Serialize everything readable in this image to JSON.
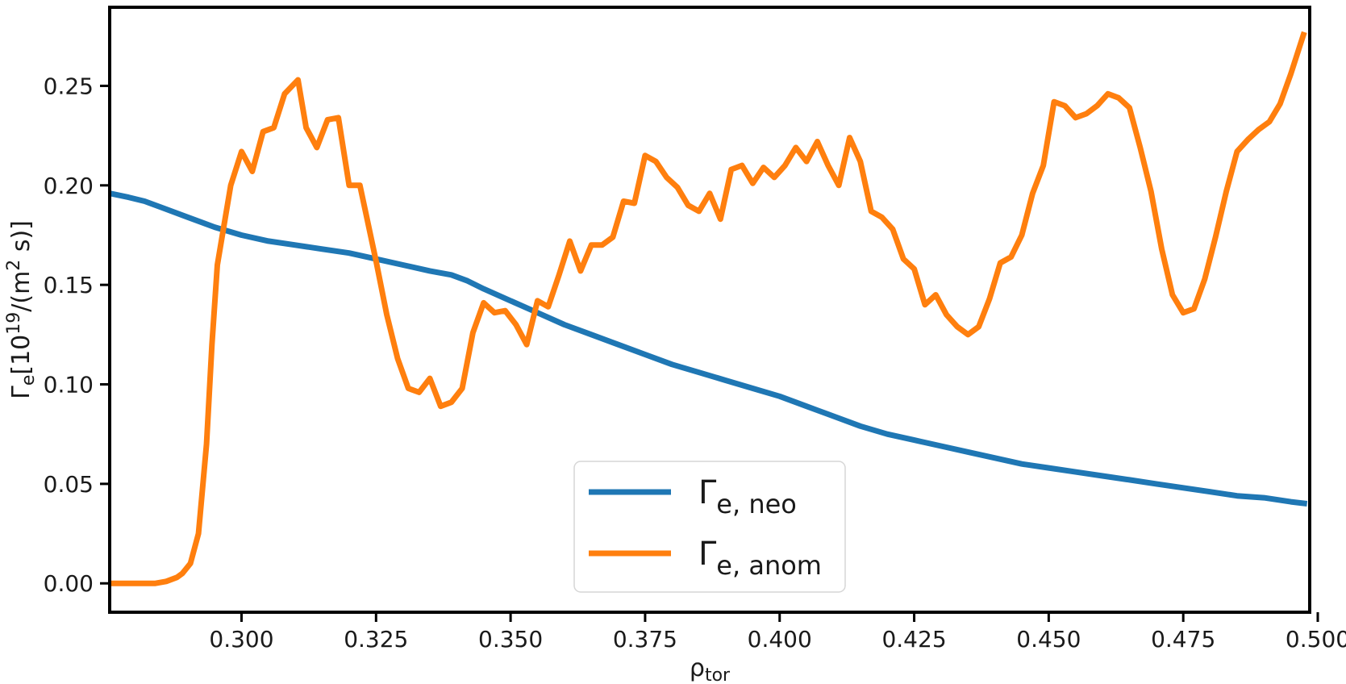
{
  "chart_data": {
    "type": "line",
    "xlabel": {
      "main": "ρ",
      "sub": "tor"
    },
    "ylabel": {
      "main": "Γ",
      "sub": "e",
      "rest": "[10",
      "sup": "19",
      "tail": "/(m",
      "sup2": "2",
      "end": " s)]"
    },
    "xlim": [
      0.2755,
      0.4985
    ],
    "ylim": [
      -0.0145,
      0.2895
    ],
    "xticks": [
      0.3,
      0.325,
      0.35,
      0.375,
      0.4,
      0.425,
      0.45,
      0.475,
      0.5
    ],
    "xtick_labels": [
      "0.300",
      "0.325",
      "0.350",
      "0.375",
      "0.400",
      "0.425",
      "0.450",
      "0.475",
      "0.500"
    ],
    "yticks": [
      0.0,
      0.05,
      0.1,
      0.15,
      0.2,
      0.25
    ],
    "ytick_labels": [
      "0.00",
      "0.05",
      "0.10",
      "0.15",
      "0.20",
      "0.25"
    ],
    "grid": false,
    "legend_position": "bottom-center",
    "series": [
      {
        "name": "Γe, neo",
        "legend": {
          "main": "Γ",
          "sub": "e, neo"
        },
        "color": "#1f77b4",
        "points": [
          [
            0.2755,
            0.196
          ],
          [
            0.279,
            0.194
          ],
          [
            0.282,
            0.192
          ],
          [
            0.285,
            0.189
          ],
          [
            0.29,
            0.184
          ],
          [
            0.295,
            0.179
          ],
          [
            0.3,
            0.175
          ],
          [
            0.305,
            0.172
          ],
          [
            0.31,
            0.17
          ],
          [
            0.315,
            0.168
          ],
          [
            0.32,
            0.166
          ],
          [
            0.325,
            0.163
          ],
          [
            0.33,
            0.16
          ],
          [
            0.335,
            0.157
          ],
          [
            0.339,
            0.155
          ],
          [
            0.342,
            0.152
          ],
          [
            0.345,
            0.148
          ],
          [
            0.35,
            0.142
          ],
          [
            0.355,
            0.136
          ],
          [
            0.36,
            0.13
          ],
          [
            0.365,
            0.125
          ],
          [
            0.37,
            0.12
          ],
          [
            0.375,
            0.115
          ],
          [
            0.38,
            0.11
          ],
          [
            0.385,
            0.106
          ],
          [
            0.39,
            0.102
          ],
          [
            0.395,
            0.098
          ],
          [
            0.4,
            0.094
          ],
          [
            0.405,
            0.089
          ],
          [
            0.41,
            0.084
          ],
          [
            0.415,
            0.079
          ],
          [
            0.42,
            0.075
          ],
          [
            0.425,
            0.072
          ],
          [
            0.43,
            0.069
          ],
          [
            0.435,
            0.066
          ],
          [
            0.44,
            0.063
          ],
          [
            0.445,
            0.06
          ],
          [
            0.45,
            0.058
          ],
          [
            0.455,
            0.056
          ],
          [
            0.46,
            0.054
          ],
          [
            0.465,
            0.052
          ],
          [
            0.47,
            0.05
          ],
          [
            0.475,
            0.048
          ],
          [
            0.48,
            0.046
          ],
          [
            0.485,
            0.044
          ],
          [
            0.49,
            0.043
          ],
          [
            0.495,
            0.041
          ],
          [
            0.498,
            0.04
          ]
        ]
      },
      {
        "name": "Γe, anom",
        "legend": {
          "main": "Γ",
          "sub": "e, anom"
        },
        "color": "#ff7f0e",
        "points": [
          [
            0.2755,
            0.0
          ],
          [
            0.278,
            0.0
          ],
          [
            0.28,
            0.0
          ],
          [
            0.282,
            0.0
          ],
          [
            0.284,
            0.0
          ],
          [
            0.286,
            0.001
          ],
          [
            0.288,
            0.003
          ],
          [
            0.289,
            0.005
          ],
          [
            0.2905,
            0.01
          ],
          [
            0.292,
            0.025
          ],
          [
            0.2935,
            0.07
          ],
          [
            0.2945,
            0.12
          ],
          [
            0.2955,
            0.16
          ],
          [
            0.298,
            0.2
          ],
          [
            0.3,
            0.217
          ],
          [
            0.302,
            0.207
          ],
          [
            0.304,
            0.227
          ],
          [
            0.306,
            0.229
          ],
          [
            0.308,
            0.246
          ],
          [
            0.3105,
            0.253
          ],
          [
            0.312,
            0.229
          ],
          [
            0.314,
            0.219
          ],
          [
            0.316,
            0.233
          ],
          [
            0.318,
            0.234
          ],
          [
            0.32,
            0.2
          ],
          [
            0.322,
            0.2
          ],
          [
            0.325,
            0.162
          ],
          [
            0.327,
            0.135
          ],
          [
            0.329,
            0.113
          ],
          [
            0.331,
            0.098
          ],
          [
            0.333,
            0.096
          ],
          [
            0.335,
            0.103
          ],
          [
            0.337,
            0.089
          ],
          [
            0.339,
            0.091
          ],
          [
            0.341,
            0.098
          ],
          [
            0.343,
            0.126
          ],
          [
            0.345,
            0.141
          ],
          [
            0.347,
            0.136
          ],
          [
            0.349,
            0.137
          ],
          [
            0.351,
            0.13
          ],
          [
            0.353,
            0.12
          ],
          [
            0.355,
            0.142
          ],
          [
            0.357,
            0.139
          ],
          [
            0.359,
            0.155
          ],
          [
            0.361,
            0.172
          ],
          [
            0.363,
            0.157
          ],
          [
            0.365,
            0.17
          ],
          [
            0.367,
            0.17
          ],
          [
            0.369,
            0.174
          ],
          [
            0.371,
            0.192
          ],
          [
            0.373,
            0.191
          ],
          [
            0.375,
            0.215
          ],
          [
            0.377,
            0.212
          ],
          [
            0.379,
            0.204
          ],
          [
            0.381,
            0.199
          ],
          [
            0.383,
            0.19
          ],
          [
            0.385,
            0.187
          ],
          [
            0.387,
            0.196
          ],
          [
            0.389,
            0.183
          ],
          [
            0.391,
            0.208
          ],
          [
            0.393,
            0.21
          ],
          [
            0.395,
            0.201
          ],
          [
            0.397,
            0.209
          ],
          [
            0.399,
            0.204
          ],
          [
            0.401,
            0.21
          ],
          [
            0.403,
            0.219
          ],
          [
            0.405,
            0.212
          ],
          [
            0.407,
            0.222
          ],
          [
            0.409,
            0.21
          ],
          [
            0.411,
            0.2
          ],
          [
            0.413,
            0.224
          ],
          [
            0.415,
            0.212
          ],
          [
            0.417,
            0.187
          ],
          [
            0.419,
            0.184
          ],
          [
            0.421,
            0.178
          ],
          [
            0.423,
            0.163
          ],
          [
            0.425,
            0.158
          ],
          [
            0.427,
            0.14
          ],
          [
            0.429,
            0.145
          ],
          [
            0.431,
            0.135
          ],
          [
            0.433,
            0.129
          ],
          [
            0.435,
            0.125
          ],
          [
            0.437,
            0.129
          ],
          [
            0.439,
            0.143
          ],
          [
            0.441,
            0.161
          ],
          [
            0.443,
            0.164
          ],
          [
            0.445,
            0.175
          ],
          [
            0.447,
            0.196
          ],
          [
            0.449,
            0.21
          ],
          [
            0.451,
            0.242
          ],
          [
            0.453,
            0.24
          ],
          [
            0.455,
            0.234
          ],
          [
            0.457,
            0.236
          ],
          [
            0.459,
            0.24
          ],
          [
            0.461,
            0.246
          ],
          [
            0.463,
            0.244
          ],
          [
            0.465,
            0.239
          ],
          [
            0.467,
            0.219
          ],
          [
            0.469,
            0.197
          ],
          [
            0.471,
            0.168
          ],
          [
            0.473,
            0.145
          ],
          [
            0.475,
            0.136
          ],
          [
            0.477,
            0.138
          ],
          [
            0.479,
            0.153
          ],
          [
            0.481,
            0.174
          ],
          [
            0.483,
            0.197
          ],
          [
            0.485,
            0.217
          ],
          [
            0.487,
            0.223
          ],
          [
            0.489,
            0.228
          ],
          [
            0.491,
            0.232
          ],
          [
            0.493,
            0.241
          ],
          [
            0.495,
            0.256
          ],
          [
            0.4975,
            0.277
          ]
        ]
      }
    ]
  }
}
